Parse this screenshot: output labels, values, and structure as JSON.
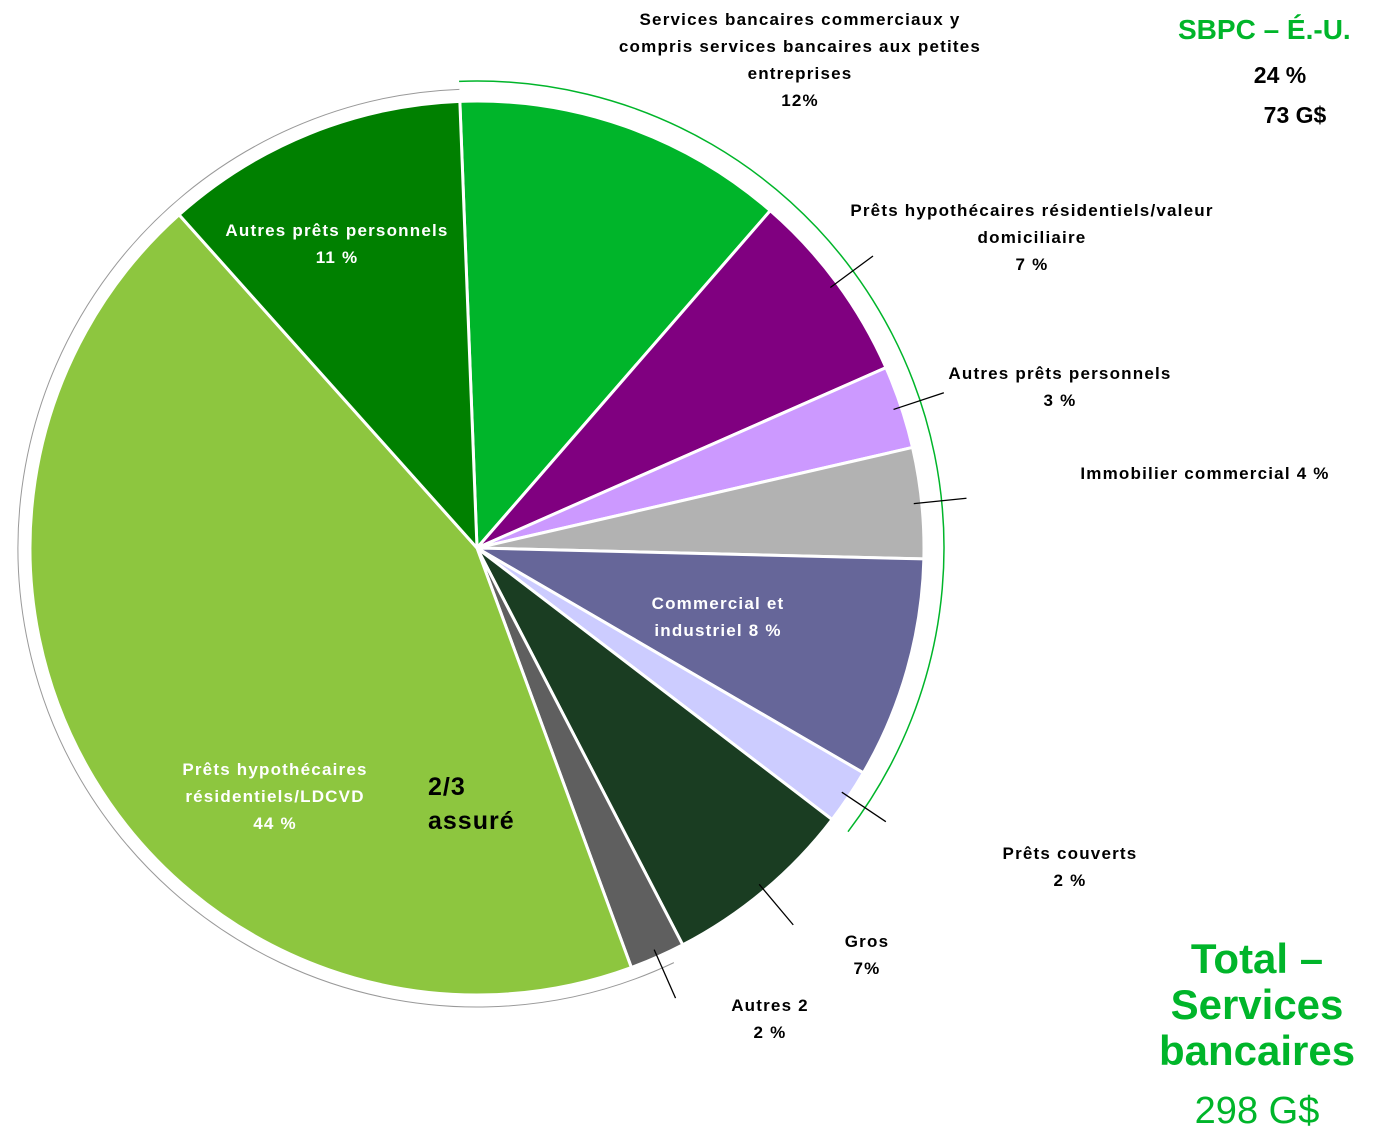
{
  "chart_data": {
    "type": "pie",
    "categories": [
      "Services bancaires commerciaux y compris services bancaires aux petites entreprises",
      "Prêts hypothécaires résidentiels/valeur domiciliaire",
      "Autres prêts personnels",
      "Immobilier commercial",
      "Commercial et industriel",
      "Prêts couverts",
      "Gros",
      "Autres 2",
      "Prêts hypothécaires résidentiels/LDCVD",
      "Autres prêts personnels"
    ],
    "values": [
      12,
      7,
      3,
      4,
      8,
      2,
      7,
      2,
      44,
      11
    ],
    "value_labels": [
      "12%",
      "7 %",
      "3 %",
      "4 %",
      "8 %",
      "2 %",
      "7%",
      "2 %",
      "44 %",
      "11 %"
    ],
    "colors": [
      "#00b52a",
      "#800080",
      "#cc99ff",
      "#b2b2b2",
      "#666699",
      "#ccccff",
      "#1a3d22",
      "#5f5f5f",
      "#8dc63f",
      "#008000"
    ],
    "annotations": {
      "segment_title": "SBPC – É.-U.",
      "segment_share": "24 %",
      "segment_amount": "73 G$",
      "total_title": "Total – Services bancaires",
      "total_amount": "298 G$",
      "insured_note": "2/3 assuré"
    }
  }
}
